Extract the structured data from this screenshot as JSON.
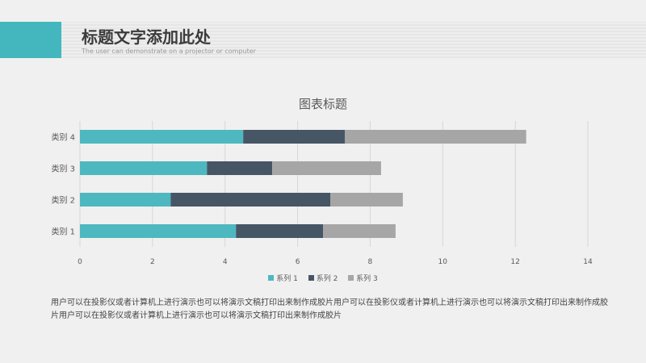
{
  "slide": {
    "title": "标题文字添加此处",
    "subtitle": "The user can demonstrate on a projector or computer",
    "body_text": "用户可以在投影仪或者计算机上进行演示也可以将演示文稿打印出来制作成胶片用户可以在投影仪或者计算机上进行演示也可以将演示文稿打印出来制作成胶片用户可以在投影仪或者计算机上进行演示也可以将演示文稿打印出来制作成胶片"
  },
  "colors": {
    "accent": "#43b7bd",
    "series1": "#4db8c0",
    "series2": "#465665",
    "series3": "#a6a6a6"
  },
  "chart_data": {
    "type": "bar",
    "orientation": "horizontal",
    "stacked": true,
    "title": "图表标题",
    "categories": [
      "类别 1",
      "类别 2",
      "类别 3",
      "类别 4"
    ],
    "series": [
      {
        "name": "系列 1",
        "values": [
          4.3,
          2.5,
          3.5,
          4.5
        ]
      },
      {
        "name": "系列 2",
        "values": [
          2.4,
          4.4,
          1.8,
          2.8
        ]
      },
      {
        "name": "系列 3",
        "values": [
          2.0,
          2.0,
          3.0,
          5.0
        ]
      }
    ],
    "xlim": [
      0,
      14
    ],
    "xticks": [
      "0",
      "2",
      "4",
      "6",
      "8",
      "10",
      "12",
      "14"
    ],
    "grid": "vertical",
    "legend_position": "bottom"
  }
}
